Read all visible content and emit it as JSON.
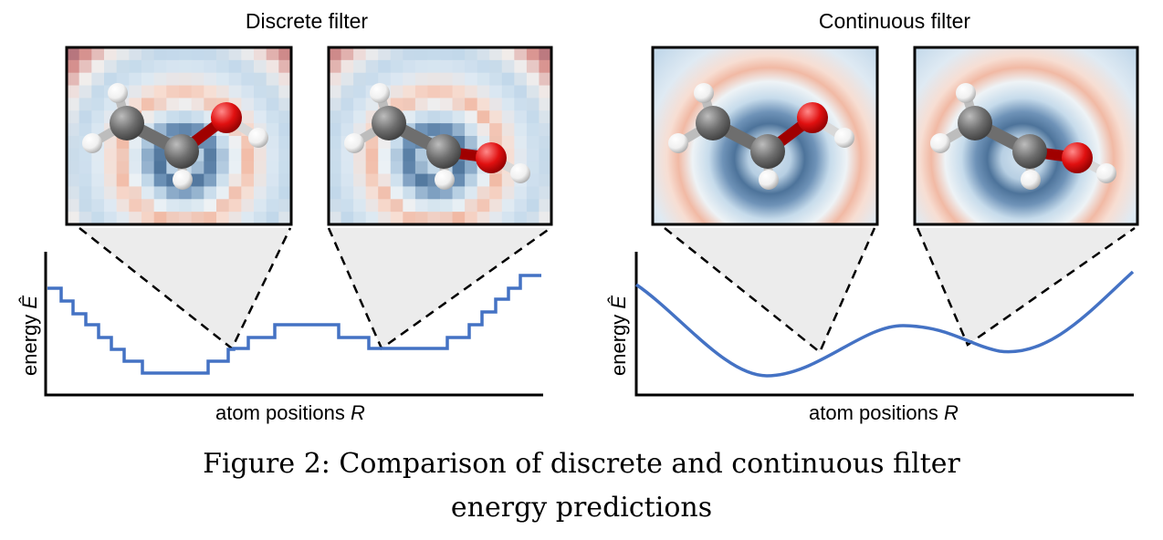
{
  "figure": {
    "left_panel": {
      "title": "Discrete filter",
      "xlabel_text": "atom positions ",
      "xlabel_var": "R",
      "ylabel_text": "energy ",
      "ylabel_var": "Ê"
    },
    "right_panel": {
      "title": "Continuous filter",
      "xlabel_text": "atom positions ",
      "xlabel_var": "R",
      "ylabel_text": "energy ",
      "ylabel_var": "Ê"
    },
    "colors": {
      "curve": "#4472c4",
      "positive": "#c25050",
      "negative": "#2c5d8f",
      "carbon": "#6e6e6e",
      "oxygen": "#e01010",
      "hydrogen": "#f2f2f2"
    }
  },
  "caption": {
    "line1": "Figure 2: Comparison of discrete and continuous filter",
    "line2": "energy predictions"
  }
}
